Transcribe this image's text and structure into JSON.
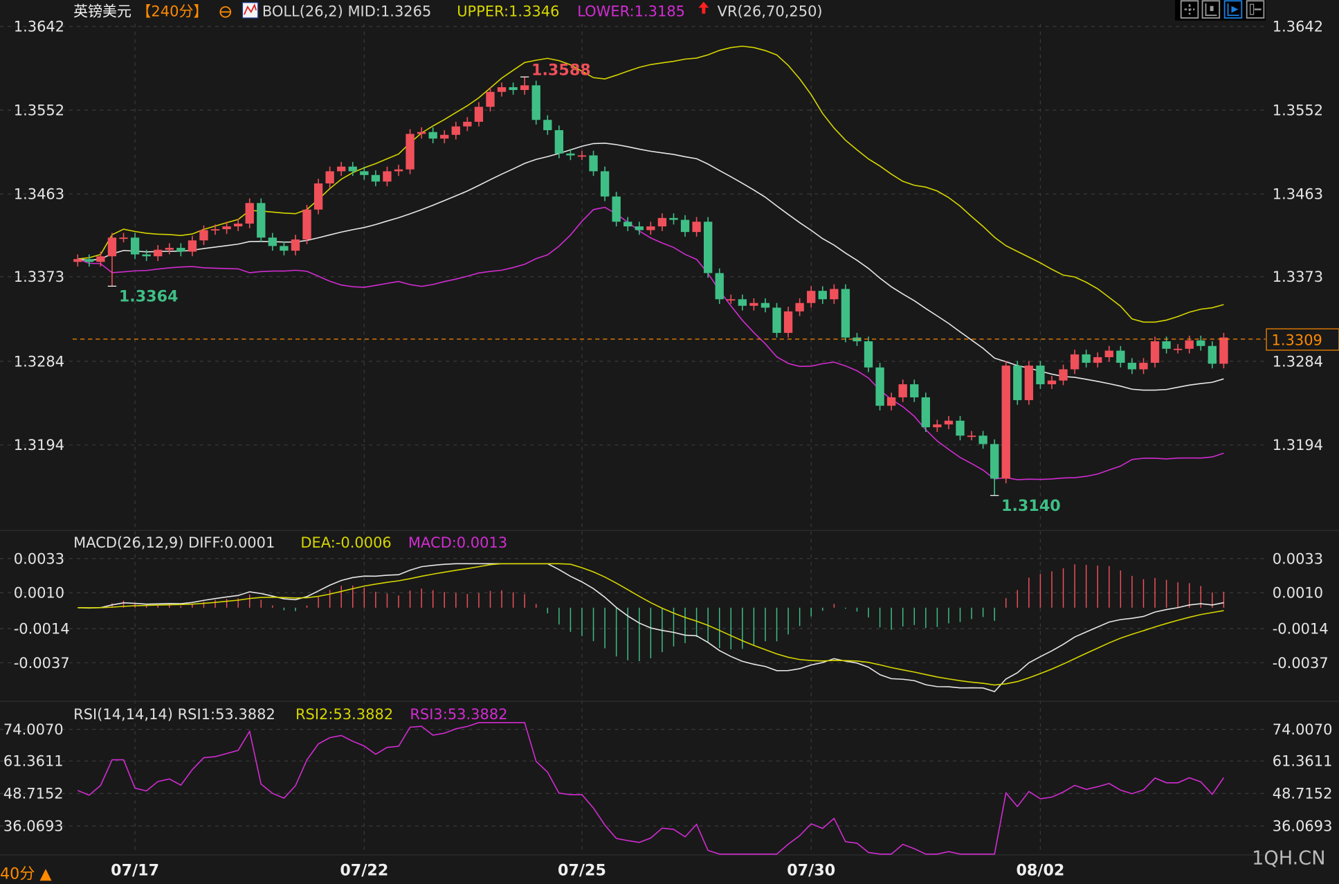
{
  "header": {
    "symbol": "英镑美元",
    "period": "【240分】",
    "boll_main": "BOLL(26,2) MID:1.3265",
    "boll_upper": "UPPER:1.3346",
    "boll_lower": "LOWER:1.3185",
    "vr": "VR(26,70,250)",
    "icons": [
      "crosshair-icon",
      "chart-indicator-icon",
      "zoom-right-icon",
      "exit-icon"
    ]
  },
  "macd_header": {
    "main": "MACD(26,12,9) DIFF:0.0001",
    "dea": "DEA:-0.0006",
    "macd": "MACD:0.0013"
  },
  "rsi_header": {
    "main": "RSI(14,14,14) RSI1:53.3882",
    "rsi2": "RSI2:53.3882",
    "rsi3": "RSI3:53.3882"
  },
  "footer": {
    "period_short": "40分 ▲",
    "watermark": "1QH.CN"
  },
  "colors": {
    "up": "#f0505a",
    "down": "#3fbf86",
    "mid": "#e8e8e8",
    "upper": "#d6d600",
    "lower": "#d22cd2",
    "accent": "#ff8a00",
    "bg": "#191919"
  },
  "price_axis": {
    "ticks": [
      "1.3642",
      "1.3552",
      "1.3463",
      "1.3373",
      "1.3284",
      "1.3194"
    ],
    "current": "1.3309"
  },
  "macd_axis": {
    "ticks": [
      "0.0033",
      "0.0010",
      "-0.0014",
      "-0.0037"
    ]
  },
  "rsi_axis": {
    "ticks": [
      "74.0070",
      "61.3611",
      "48.7152",
      "36.0693"
    ]
  },
  "date_axis": [
    {
      "label": "07/17",
      "index": 5
    },
    {
      "label": "07/22",
      "index": 25
    },
    {
      "label": "07/25",
      "index": 44
    },
    {
      "label": "07/30",
      "index": 64
    },
    {
      "label": "08/02",
      "index": 84
    }
  ],
  "price_chart": {
    "closes": [
      1.3393,
      1.339,
      1.3396,
      1.3416,
      1.3416,
      1.3398,
      1.3396,
      1.3403,
      1.3405,
      1.3401,
      1.3413,
      1.3424,
      1.3425,
      1.3428,
      1.3431,
      1.3453,
      1.3416,
      1.3407,
      1.3402,
      1.3414,
      1.3446,
      1.3474,
      1.3487,
      1.3492,
      1.3487,
      1.3483,
      1.3476,
      1.3487,
      1.3489,
      1.3527,
      1.3529,
      1.3522,
      1.3526,
      1.3535,
      1.354,
      1.3556,
      1.3572,
      1.3577,
      1.3574,
      1.3579,
      1.3542,
      1.3531,
      1.3506,
      1.3504,
      1.3504,
      1.3487,
      1.346,
      1.3433,
      1.3428,
      1.3424,
      1.3428,
      1.3437,
      1.3435,
      1.3422,
      1.3433,
      1.3378,
      1.335,
      1.335,
      1.3343,
      1.3346,
      1.3341,
      1.3314,
      1.3337,
      1.3346,
      1.3359,
      1.335,
      1.3361,
      1.3309,
      1.3305,
      1.3277,
      1.3236,
      1.3245,
      1.3259,
      1.3245,
      1.3213,
      1.3216,
      1.322,
      1.3204,
      1.3204,
      1.3195,
      1.3158,
      1.3279,
      1.3242,
      1.3279,
      1.3259,
      1.3263,
      1.3275,
      1.3291,
      1.3282,
      1.3288,
      1.3295,
      1.3282,
      1.3275,
      1.3282,
      1.3305,
      1.3297,
      1.3297,
      1.3306,
      1.33,
      1.3281,
      1.3309
    ],
    "annotations": [
      {
        "index": 39,
        "type": "high",
        "value": 1.3588,
        "label": "1.3588"
      },
      {
        "index": 3,
        "type": "low",
        "value": 1.3364,
        "label": "1.3364"
      },
      {
        "index": 80,
        "type": "low",
        "value": 1.314,
        "label": "1.3140"
      }
    ]
  }
}
